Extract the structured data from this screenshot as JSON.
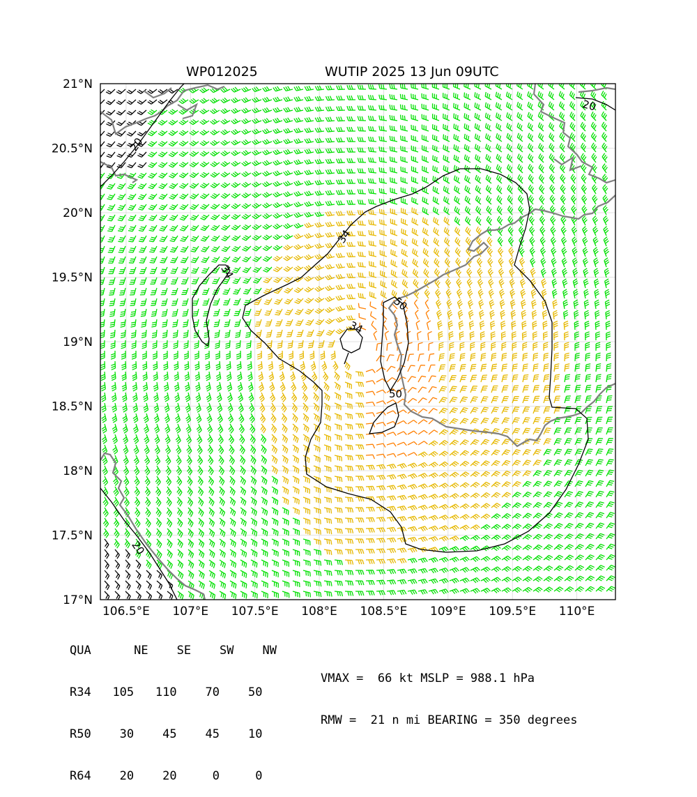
{
  "header": {
    "storm_id": "WP012025",
    "storm_title": "WUTIP 2025 13 Jun 09UTC"
  },
  "map": {
    "lat_labels": [
      "17°N",
      "17.5°N",
      "18°N",
      "18.5°N",
      "19°N",
      "19.5°N",
      "20°N",
      "20.5°N",
      "21°N"
    ],
    "lon_labels": [
      "106.5°E",
      "107°E",
      "107.5°E",
      "108°E",
      "108.5°E",
      "109°E",
      "109.5°E",
      "110°E"
    ],
    "extent": {
      "lon_min": 106.3,
      "lon_max": 110.3,
      "lat_min": 17.0,
      "lat_max": 21.0
    },
    "center": {
      "lon": 108.3,
      "lat": 18.95
    },
    "contour_labels": [
      "34",
      "34",
      "34",
      "50",
      "50",
      "20",
      "20",
      "20"
    ],
    "colors": {
      "r34": "#00e000",
      "r50": "#e6b800",
      "r64": "#ff7f00",
      "coast": "#808080",
      "contour": "#000000",
      "calm": "#000000"
    }
  },
  "table": {
    "header": [
      "QUA",
      "NE",
      "SE",
      "SW",
      "NW"
    ],
    "rows": [
      {
        "label": "R34",
        "values": [
          "105",
          "110",
          "70",
          "50"
        ]
      },
      {
        "label": "R50",
        "values": [
          "30",
          "45",
          "45",
          "10"
        ]
      },
      {
        "label": "R64",
        "values": [
          "20",
          "20",
          "0",
          "0"
        ]
      }
    ]
  },
  "info": {
    "line1": "VMAX =  66 kt MSLP = 988.1 hPa",
    "line2": "RMW =  21 n mi BEARING = 350 degrees"
  }
}
